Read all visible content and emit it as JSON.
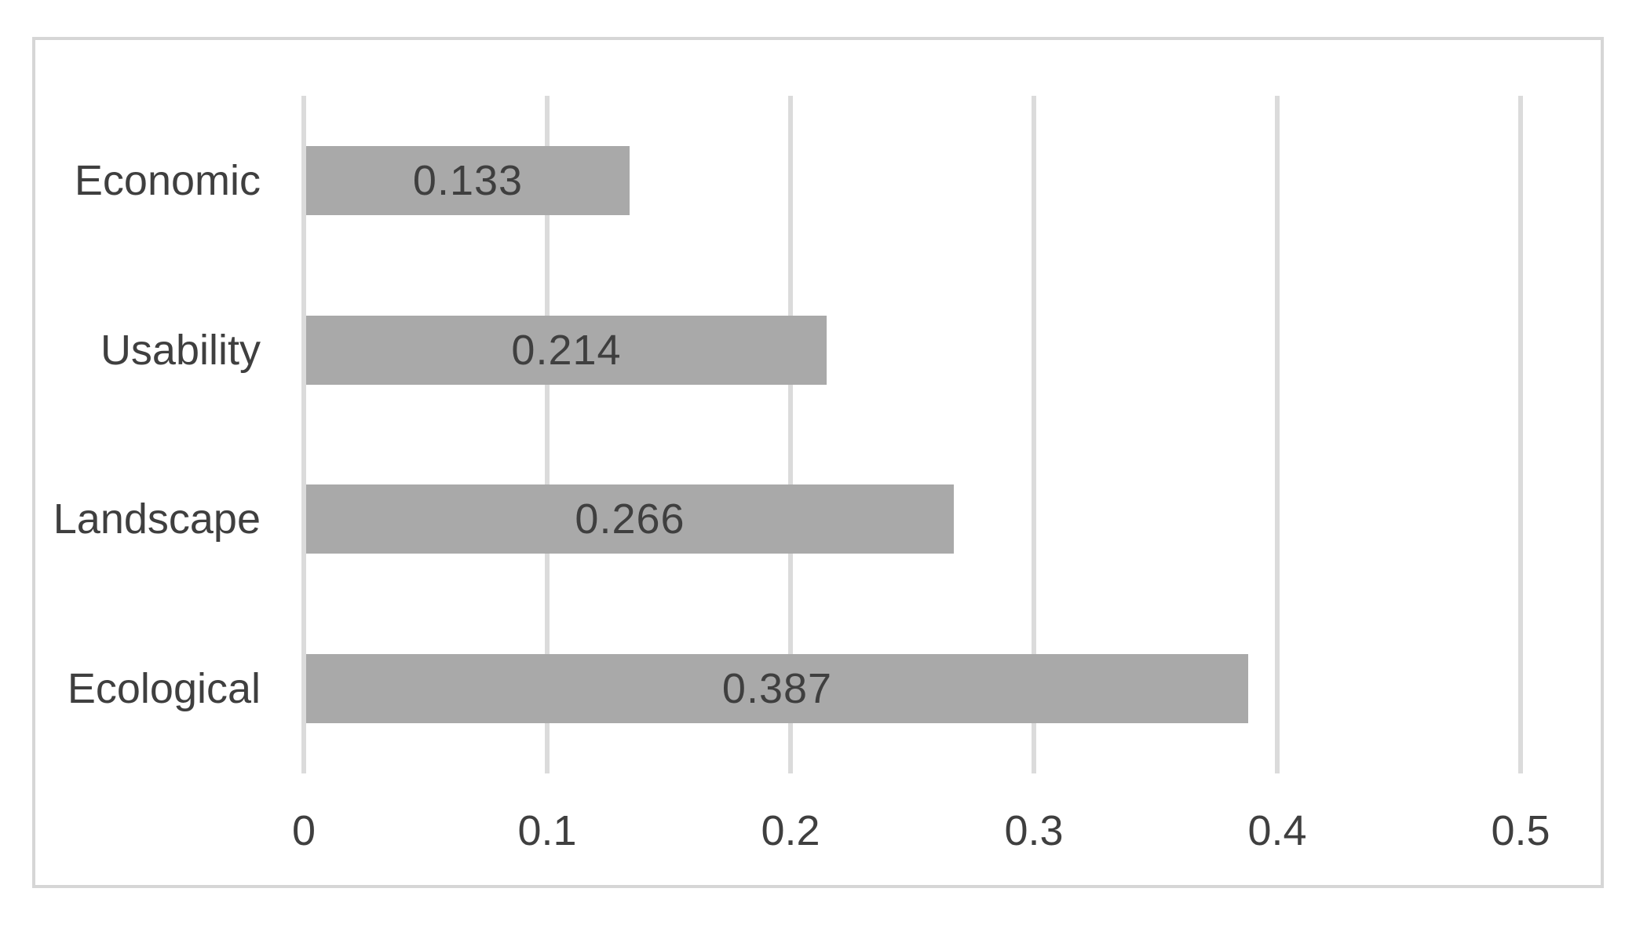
{
  "chart_data": {
    "type": "bar",
    "orientation": "horizontal",
    "title": "",
    "xlabel": "",
    "ylabel": "",
    "categories": [
      "Economic",
      "Usability",
      "Landscape",
      "Ecological"
    ],
    "values": [
      0.133,
      0.214,
      0.266,
      0.387
    ],
    "value_labels": [
      "0.133",
      "0.214",
      "0.266",
      "0.387"
    ],
    "value_label_position": "inside-center",
    "xlim": [
      0,
      0.5
    ],
    "xticks": [
      0,
      0.1,
      0.2,
      0.3,
      0.4,
      0.5
    ],
    "xtick_labels": [
      "0",
      "0.1",
      "0.2",
      "0.3",
      "0.4",
      "0.5"
    ],
    "grid": "vertical",
    "legend": "none",
    "colors": {
      "bar_fill": "#A9A9A9",
      "gridline": "#DBDBDB",
      "frame_border": "#D6D6D6",
      "text": "#3F3F3F",
      "background": "#FFFFFF"
    }
  }
}
